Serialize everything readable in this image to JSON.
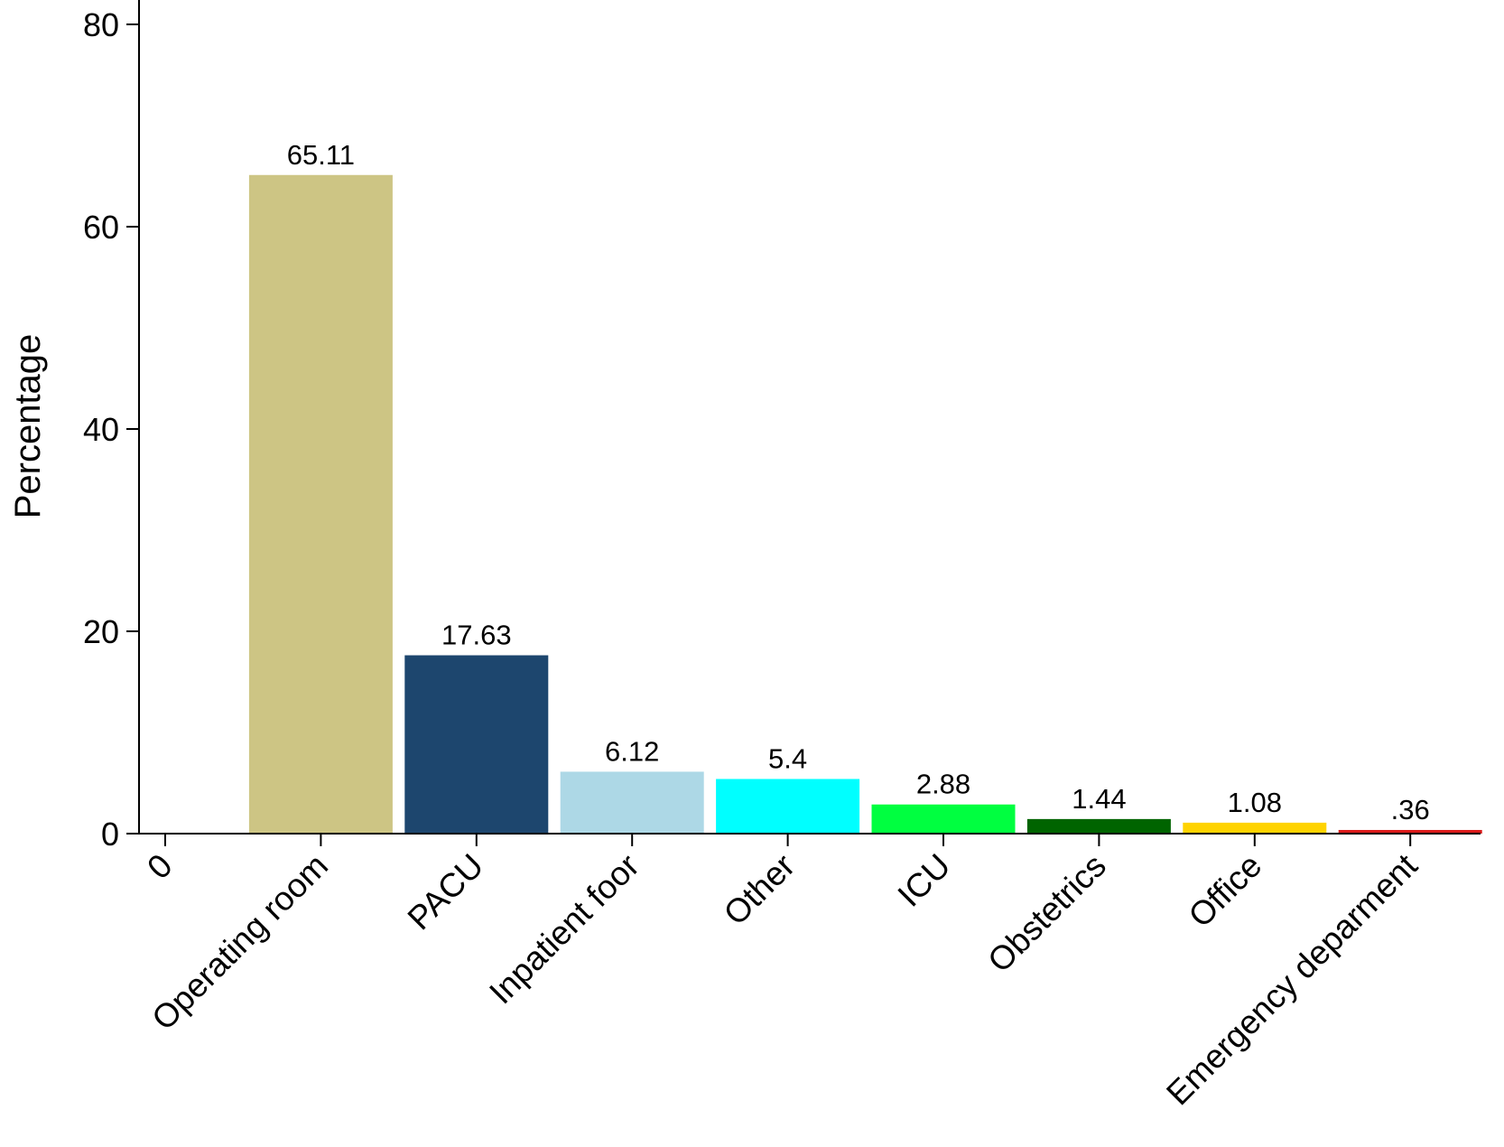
{
  "chart_data": {
    "type": "bar",
    "title": "",
    "xlabel": "",
    "ylabel": "Percentage",
    "ylim": [
      0,
      80
    ],
    "yticks": [
      0,
      20,
      40,
      60,
      80
    ],
    "grid": false,
    "legend": "none",
    "categories": [
      "0",
      "Operating room",
      "PACU",
      "Inpatient foor",
      "Other",
      "ICU",
      "Obstetrics",
      "Office",
      "Emergency deparment"
    ],
    "values": [
      null,
      65.11,
      17.63,
      6.12,
      5.4,
      2.88,
      1.44,
      1.08,
      0.36
    ],
    "value_labels": [
      "",
      "65.11",
      "17.63",
      "6.12",
      "5.4",
      "2.88",
      "1.44",
      "1.08",
      ".36"
    ],
    "colors": [
      "#ffffff",
      "#cdc584",
      "#1d466e",
      "#add8e6",
      "#00ffff",
      "#00ff40",
      "#006400",
      "#ffd300",
      "#db1a1a"
    ]
  }
}
